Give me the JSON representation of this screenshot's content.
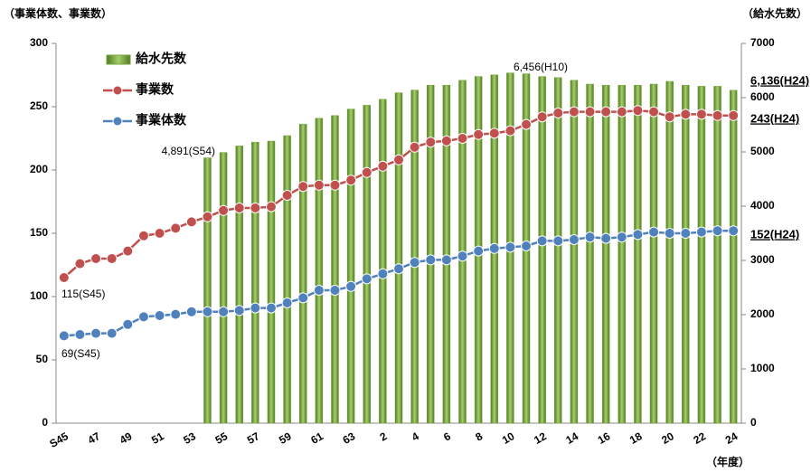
{
  "chart_data": {
    "type": "bar-line",
    "y_label": "（事業体数、事業数）",
    "y2_label": "（給水先数）",
    "x_label": "（年度）",
    "categories": [
      "S45",
      null,
      "47",
      null,
      "49",
      null,
      "51",
      null,
      "53",
      null,
      "55",
      null,
      "57",
      null,
      "59",
      null,
      "61",
      null,
      "63",
      null,
      "2",
      null,
      "4",
      null,
      "6",
      null,
      "8",
      null,
      "10",
      null,
      "12",
      null,
      "14",
      null,
      "16",
      null,
      "18",
      null,
      "20",
      null,
      "22",
      null,
      "24"
    ],
    "series": [
      {
        "name": "給水先数",
        "type": "bar",
        "axis": "y2",
        "color": "#77a33a",
        "values": [
          null,
          null,
          null,
          null,
          null,
          null,
          null,
          null,
          null,
          4891,
          4990,
          5110,
          5180,
          5200,
          5300,
          5510,
          5620,
          5670,
          5790,
          5860,
          5970,
          6090,
          6140,
          6230,
          6230,
          6320,
          6390,
          6420,
          6456,
          6440,
          6390,
          6370,
          6320,
          6250,
          6230,
          6230,
          6230,
          6250,
          6300,
          6230,
          6210,
          6210,
          6136
        ]
      },
      {
        "name": "事業数",
        "type": "line",
        "axis": "y",
        "color": "#c0504d",
        "values": [
          115,
          126,
          130,
          130,
          136,
          148,
          150,
          154,
          159,
          163,
          168,
          170,
          170,
          171,
          180,
          187,
          188,
          188,
          192,
          198,
          203,
          208,
          218,
          222,
          223,
          225,
          228,
          229,
          231,
          236,
          242,
          245,
          246,
          246,
          246,
          246,
          247,
          246,
          242,
          244,
          244,
          243,
          243
        ]
      },
      {
        "name": "事業体数",
        "type": "line",
        "axis": "y",
        "color": "#4f81bd",
        "values": [
          69,
          70,
          71,
          71,
          78,
          84,
          85,
          86,
          88,
          88,
          88,
          89,
          91,
          91,
          95,
          99,
          105,
          105,
          108,
          114,
          118,
          122,
          127,
          129,
          129,
          132,
          136,
          138,
          139,
          140,
          144,
          144,
          145,
          147,
          146,
          147,
          149,
          151,
          150,
          150,
          151,
          152,
          152
        ]
      }
    ],
    "annotations": [
      "4,891(S54)",
      "6,456(H10)",
      "115(S45)",
      "69(S45)",
      "6,136(H24)",
      "243(H24)",
      "152(H24)"
    ],
    "ylim": [
      0,
      300
    ],
    "yticks": [
      0,
      50,
      100,
      150,
      200,
      250,
      300
    ],
    "y2lim": [
      0,
      7000
    ],
    "y2ticks": [
      0,
      1000,
      2000,
      3000,
      4000,
      5000,
      6000,
      7000
    ]
  }
}
